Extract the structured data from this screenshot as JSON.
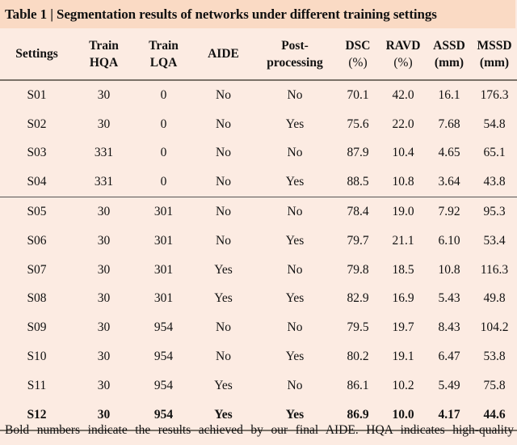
{
  "table": {
    "title": "Table 1 | Segmentation results of networks under different training settings",
    "headers": [
      {
        "line1": "Settings",
        "line2": ""
      },
      {
        "line1": "Train",
        "line2": "HQA"
      },
      {
        "line1": "Train",
        "line2": "LQA"
      },
      {
        "line1": "AIDE",
        "line2": ""
      },
      {
        "line1": "Post-",
        "line2": "processing"
      },
      {
        "line1": "DSC",
        "line2": "(%)"
      },
      {
        "line1": "RAVD",
        "line2": "(%)"
      },
      {
        "line1": "ASSD",
        "line2": "(mm)"
      },
      {
        "line1": "MSSD",
        "line2": "(mm)"
      }
    ],
    "rows": [
      [
        "S01",
        "30",
        "0",
        "No",
        "No",
        "70.1",
        "42.0",
        "16.1",
        "176.3"
      ],
      [
        "S02",
        "30",
        "0",
        "No",
        "Yes",
        "75.6",
        "22.0",
        "7.68",
        "54.8"
      ],
      [
        "S03",
        "331",
        "0",
        "No",
        "No",
        "87.9",
        "10.4",
        "4.65",
        "65.1"
      ],
      [
        "S04",
        "331",
        "0",
        "No",
        "Yes",
        "88.5",
        "10.8",
        "3.64",
        "43.8"
      ],
      [
        "S05",
        "30",
        "301",
        "No",
        "No",
        "78.4",
        "19.0",
        "7.92",
        "95.3"
      ],
      [
        "S06",
        "30",
        "301",
        "No",
        "Yes",
        "79.7",
        "21.1",
        "6.10",
        "53.4"
      ],
      [
        "S07",
        "30",
        "301",
        "Yes",
        "No",
        "79.8",
        "18.5",
        "10.8",
        "116.3"
      ],
      [
        "S08",
        "30",
        "301",
        "Yes",
        "Yes",
        "82.9",
        "16.9",
        "5.43",
        "49.8"
      ],
      [
        "S09",
        "30",
        "954",
        "No",
        "No",
        "79.5",
        "19.7",
        "8.43",
        "104.2"
      ],
      [
        "S10",
        "30",
        "954",
        "No",
        "Yes",
        "80.2",
        "19.1",
        "6.47",
        "53.8"
      ],
      [
        "S11",
        "30",
        "954",
        "Yes",
        "No",
        "86.1",
        "10.2",
        "5.49",
        "75.8"
      ],
      [
        "S12",
        "30",
        "954",
        "Yes",
        "Yes",
        "86.9",
        "10.0",
        "4.17",
        "44.6"
      ]
    ],
    "footnote": "Bold numbers indicate the results achieved by our final AIDE. HQA indicates high-quality"
  },
  "colors": {
    "title_background": "#fadac4",
    "table_background": "#fcebe2",
    "rule_color": "#7a7268"
  }
}
